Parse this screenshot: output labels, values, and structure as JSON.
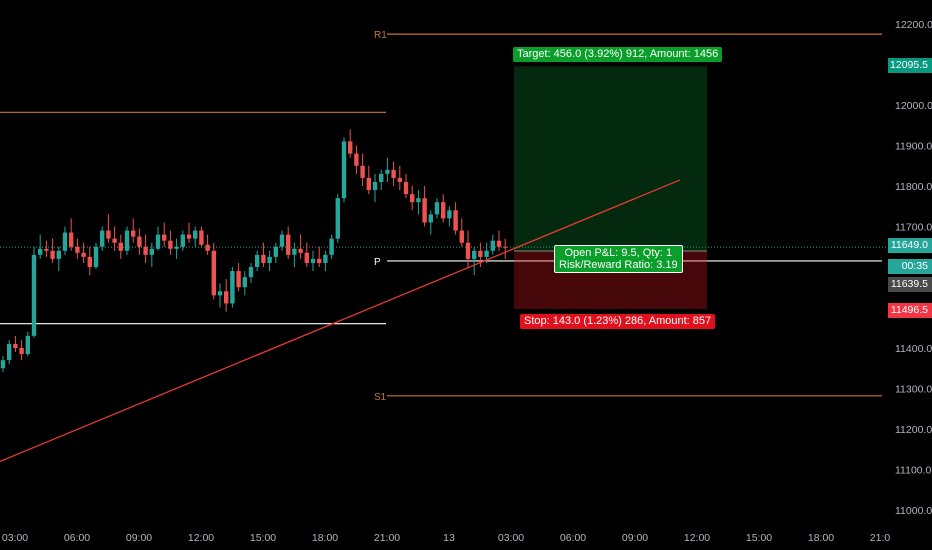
{
  "chart_data": {
    "type": "candlestick",
    "x_ticks": [
      "03:00",
      "06:00",
      "09:00",
      "12:00",
      "15:00",
      "18:00",
      "21:00",
      "13",
      "03:00",
      "06:00",
      "09:00",
      "12:00",
      "15:00",
      "18:00",
      "21:0"
    ],
    "y_ticks": [
      "12200.0",
      "12100.0",
      "12000.0",
      "11900.0",
      "11800.0",
      "11700.0",
      "11600.0",
      "11500.0",
      "11400.0",
      "11300.0",
      "11200.0",
      "11100.0",
      "11000.0"
    ],
    "ylim": [
      10980,
      12240
    ],
    "colors": {
      "up": "#26a69a",
      "down": "#ef5350",
      "background": "#000000"
    },
    "levels": [
      {
        "label": "R1",
        "value": 12175,
        "color": "#c8762a"
      },
      {
        "label": "P",
        "value": 11615,
        "color": "#ffffff"
      },
      {
        "label": "S1",
        "value": 11282,
        "color": "#c8762a"
      },
      {
        "label": "",
        "value": 11982,
        "color": "#c8762a"
      },
      {
        "label": "",
        "value": 11460,
        "color": "#ffffff"
      }
    ],
    "trendline": {
      "from": [
        "00:00",
        11120
      ],
      "to": [
        "12:00",
        11815
      ],
      "color": "#e53935"
    },
    "position": {
      "entry": 11639.5,
      "target": 12095.5,
      "stop": 11496.5,
      "target_label": "Target: 456.0 (3.92%) 912, Amount: 1456",
      "stop_label": "Stop: 143.0 (1.23%) 286, Amount: 857",
      "pnl_label": "Open P&L: 9.5, Qty: 1",
      "rr_label": "Risk/Reward Ratio: 3.19"
    },
    "price_tags": [
      {
        "text": "12095.5",
        "color": "#089981"
      },
      {
        "text": "11649.0",
        "color": "#26a69a"
      },
      {
        "text": "00:35",
        "color": "#26a69a"
      },
      {
        "text": "11639.5",
        "color": "#4a4a4a"
      },
      {
        "text": "11496.5",
        "color": "#f23645"
      }
    ],
    "p_axis_label": "1",
    "candles": [
      [
        11350,
        11380,
        11340,
        11370
      ],
      [
        11370,
        11420,
        11360,
        11410
      ],
      [
        11410,
        11430,
        11390,
        11400
      ],
      [
        11400,
        11420,
        11370,
        11385
      ],
      [
        11385,
        11440,
        11380,
        11430
      ],
      [
        11430,
        11650,
        11425,
        11630
      ],
      [
        11630,
        11680,
        11620,
        11645
      ],
      [
        11645,
        11665,
        11625,
        11640
      ],
      [
        11640,
        11670,
        11610,
        11620
      ],
      [
        11620,
        11650,
        11590,
        11640
      ],
      [
        11640,
        11700,
        11630,
        11685
      ],
      [
        11685,
        11720,
        11640,
        11650
      ],
      [
        11650,
        11670,
        11620,
        11635
      ],
      [
        11635,
        11660,
        11610,
        11625
      ],
      [
        11625,
        11650,
        11580,
        11600
      ],
      [
        11600,
        11660,
        11595,
        11650
      ],
      [
        11650,
        11700,
        11640,
        11690
      ],
      [
        11690,
        11730,
        11660,
        11670
      ],
      [
        11670,
        11700,
        11640,
        11660
      ],
      [
        11660,
        11680,
        11620,
        11640
      ],
      [
        11640,
        11700,
        11630,
        11690
      ],
      [
        11690,
        11720,
        11660,
        11675
      ],
      [
        11675,
        11695,
        11630,
        11650
      ],
      [
        11650,
        11680,
        11610,
        11630
      ],
      [
        11630,
        11660,
        11600,
        11645
      ],
      [
        11645,
        11700,
        11640,
        11680
      ],
      [
        11680,
        11710,
        11650,
        11665
      ],
      [
        11665,
        11690,
        11630,
        11645
      ],
      [
        11645,
        11670,
        11620,
        11650
      ],
      [
        11650,
        11690,
        11640,
        11680
      ],
      [
        11680,
        11710,
        11660,
        11670
      ],
      [
        11670,
        11700,
        11650,
        11690
      ],
      [
        11690,
        11700,
        11650,
        11655
      ],
      [
        11655,
        11680,
        11630,
        11640
      ],
      [
        11640,
        11660,
        11520,
        11530
      ],
      [
        11530,
        11560,
        11500,
        11540
      ],
      [
        11540,
        11570,
        11490,
        11510
      ],
      [
        11510,
        11600,
        11500,
        11590
      ],
      [
        11590,
        11610,
        11540,
        11550
      ],
      [
        11550,
        11590,
        11530,
        11575
      ],
      [
        11575,
        11610,
        11560,
        11600
      ],
      [
        11600,
        11640,
        11590,
        11630
      ],
      [
        11630,
        11660,
        11600,
        11610
      ],
      [
        11610,
        11640,
        11590,
        11625
      ],
      [
        11625,
        11660,
        11610,
        11650
      ],
      [
        11650,
        11690,
        11640,
        11680
      ],
      [
        11680,
        11700,
        11620,
        11630
      ],
      [
        11630,
        11660,
        11600,
        11645
      ],
      [
        11645,
        11680,
        11620,
        11635
      ],
      [
        11635,
        11660,
        11600,
        11610
      ],
      [
        11610,
        11640,
        11590,
        11620
      ],
      [
        11620,
        11650,
        11600,
        11610
      ],
      [
        11610,
        11640,
        11590,
        11630
      ],
      [
        11630,
        11680,
        11620,
        11670
      ],
      [
        11670,
        11780,
        11660,
        11770
      ],
      [
        11770,
        11920,
        11760,
        11910
      ],
      [
        11910,
        11940,
        11870,
        11880
      ],
      [
        11880,
        11900,
        11830,
        11850
      ],
      [
        11850,
        11880,
        11800,
        11820
      ],
      [
        11820,
        11850,
        11780,
        11790
      ],
      [
        11790,
        11830,
        11760,
        11810
      ],
      [
        11810,
        11840,
        11790,
        11830
      ],
      [
        11830,
        11870,
        11810,
        11840
      ],
      [
        11840,
        11860,
        11800,
        11820
      ],
      [
        11820,
        11850,
        11790,
        11810
      ],
      [
        11810,
        11830,
        11770,
        11780
      ],
      [
        11780,
        11800,
        11740,
        11760
      ],
      [
        11760,
        11790,
        11730,
        11770
      ],
      [
        11770,
        11800,
        11700,
        11710
      ],
      [
        11710,
        11740,
        11680,
        11730
      ],
      [
        11730,
        11770,
        11720,
        11760
      ],
      [
        11760,
        11780,
        11710,
        11720
      ],
      [
        11720,
        11750,
        11700,
        11740
      ],
      [
        11740,
        11760,
        11680,
        11690
      ],
      [
        11690,
        11720,
        11650,
        11660
      ],
      [
        11660,
        11690,
        11600,
        11620
      ],
      [
        11620,
        11650,
        11580,
        11640
      ],
      [
        11640,
        11660,
        11600,
        11625
      ],
      [
        11625,
        11660,
        11610,
        11640
      ],
      [
        11640,
        11680,
        11630,
        11665
      ],
      [
        11665,
        11690,
        11640,
        11650
      ],
      [
        11650,
        11670,
        11620,
        11649
      ]
    ]
  }
}
